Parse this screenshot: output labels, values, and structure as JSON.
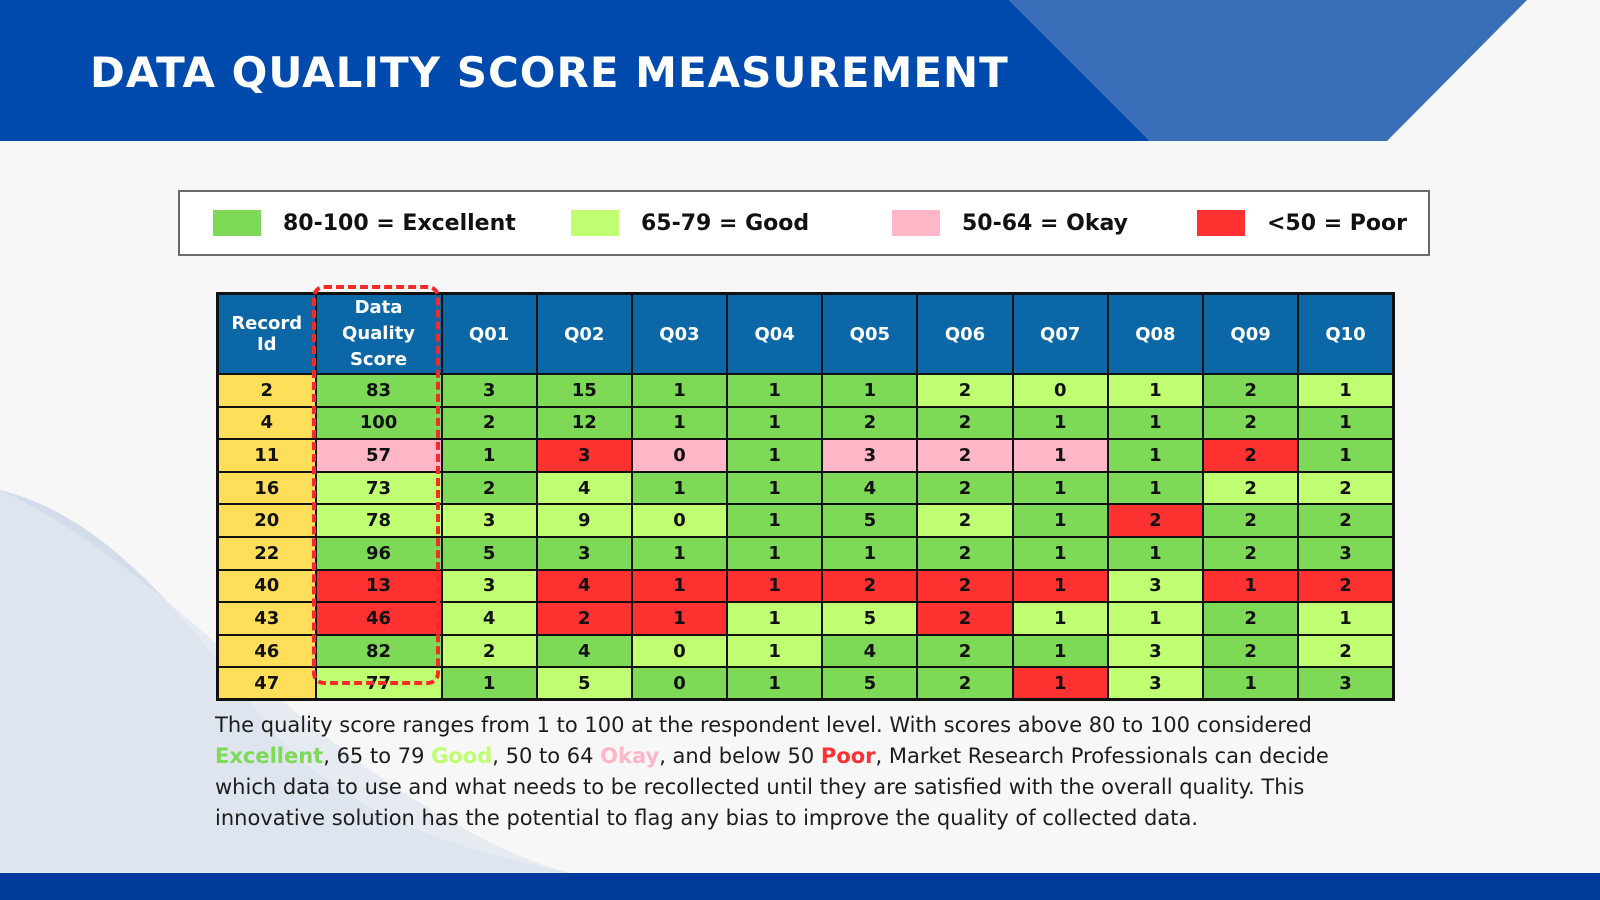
{
  "colors": {
    "excellent": "#7ed957",
    "good": "#c1ff72",
    "okay": "#ffb6c7",
    "poor": "#ff3131",
    "record_id_bg": "#ffde59",
    "header_bg": "#0b67a6",
    "brand_dark": "#004aad",
    "brand_light": "#386fb8"
  },
  "header": {
    "title": "DATA QUALITY SCORE MEASUREMENT"
  },
  "legend": [
    {
      "label": "80-100 = Excellent",
      "level": "excellent"
    },
    {
      "label": "65-79 = Good",
      "level": "good"
    },
    {
      "label": "50-64 = Okay",
      "level": "okay"
    },
    {
      "label": "<50 = Poor",
      "level": "poor"
    }
  ],
  "table": {
    "columns": [
      "Record Id",
      "Data Quality Score",
      "Q01",
      "Q02",
      "Q03",
      "Q04",
      "Q05",
      "Q06",
      "Q07",
      "Q08",
      "Q09",
      "Q10"
    ],
    "rows": [
      {
        "id": "2",
        "values": [
          "83",
          "3",
          "15",
          "1",
          "1",
          "1",
          "2",
          "0",
          "1",
          "2",
          "1"
        ],
        "levels": [
          "E",
          "E",
          "E",
          "E",
          "E",
          "E",
          "G",
          "G",
          "G",
          "E",
          "G"
        ]
      },
      {
        "id": "4",
        "values": [
          "100",
          "2",
          "12",
          "1",
          "1",
          "2",
          "2",
          "1",
          "1",
          "2",
          "1"
        ],
        "levels": [
          "E",
          "E",
          "E",
          "E",
          "E",
          "E",
          "E",
          "E",
          "E",
          "E",
          "E"
        ]
      },
      {
        "id": "11",
        "values": [
          "57",
          "1",
          "3",
          "0",
          "1",
          "3",
          "2",
          "1",
          "1",
          "2",
          "1"
        ],
        "levels": [
          "O",
          "E",
          "P",
          "O",
          "E",
          "O",
          "O",
          "O",
          "E",
          "P",
          "E"
        ]
      },
      {
        "id": "16",
        "values": [
          "73",
          "2",
          "4",
          "1",
          "1",
          "4",
          "2",
          "1",
          "1",
          "2",
          "2"
        ],
        "levels": [
          "G",
          "E",
          "G",
          "E",
          "E",
          "E",
          "E",
          "E",
          "E",
          "G",
          "G"
        ]
      },
      {
        "id": "20",
        "values": [
          "78",
          "3",
          "9",
          "0",
          "1",
          "5",
          "2",
          "1",
          "2",
          "2",
          "2"
        ],
        "levels": [
          "G",
          "G",
          "G",
          "G",
          "E",
          "E",
          "G",
          "E",
          "P",
          "E",
          "E"
        ]
      },
      {
        "id": "22",
        "values": [
          "96",
          "5",
          "3",
          "1",
          "1",
          "1",
          "2",
          "1",
          "1",
          "2",
          "3"
        ],
        "levels": [
          "E",
          "E",
          "E",
          "E",
          "E",
          "E",
          "E",
          "E",
          "E",
          "E",
          "E"
        ]
      },
      {
        "id": "40",
        "values": [
          "13",
          "3",
          "4",
          "1",
          "1",
          "2",
          "2",
          "1",
          "3",
          "1",
          "2"
        ],
        "levels": [
          "P",
          "G",
          "P",
          "P",
          "P",
          "P",
          "P",
          "P",
          "G",
          "P",
          "P"
        ]
      },
      {
        "id": "43",
        "values": [
          "46",
          "4",
          "2",
          "1",
          "1",
          "5",
          "2",
          "1",
          "1",
          "2",
          "1"
        ],
        "levels": [
          "P",
          "G",
          "P",
          "P",
          "G",
          "G",
          "P",
          "G",
          "G",
          "E",
          "G"
        ]
      },
      {
        "id": "46",
        "values": [
          "82",
          "2",
          "4",
          "0",
          "1",
          "4",
          "2",
          "1",
          "3",
          "2",
          "2"
        ],
        "levels": [
          "E",
          "G",
          "E",
          "G",
          "G",
          "E",
          "E",
          "E",
          "G",
          "E",
          "G"
        ]
      },
      {
        "id": "47",
        "values": [
          "77",
          "1",
          "5",
          "0",
          "1",
          "5",
          "2",
          "1",
          "3",
          "1",
          "3"
        ],
        "levels": [
          "G",
          "E",
          "G",
          "E",
          "E",
          "E",
          "E",
          "P",
          "G",
          "E",
          "E"
        ]
      }
    ]
  },
  "description": {
    "part1": "The quality score ranges from 1 to 100 at the respondent level. With scores above 80 to 100 considered ",
    "excellent": "Excellent",
    "part2": ", 65 to 79 ",
    "good": "Good",
    "part3": ", 50 to 64 ",
    "okay": "Okay",
    "part4": ", and below 50 ",
    "poor": "Poor",
    "part5": ", Market Research Professionals can decide which data to use and what needs to be recollected until they are satisfied with the overall quality. This innovative solution has the potential to flag any bias to improve the quality of collected data."
  }
}
